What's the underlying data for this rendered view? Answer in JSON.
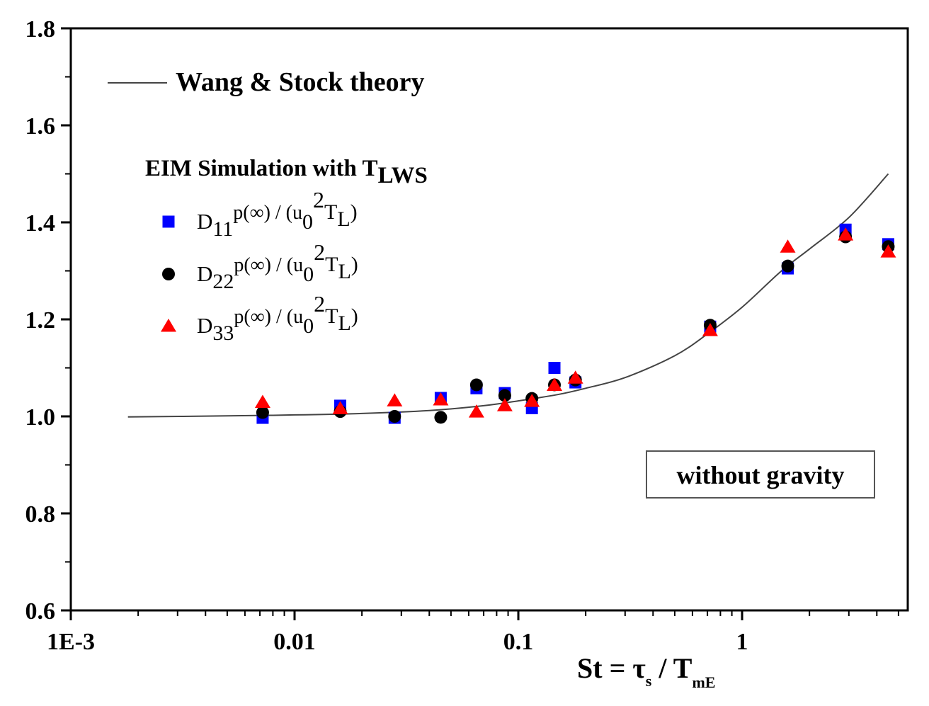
{
  "chart_data": {
    "type": "scatter",
    "x_scale": "log",
    "xlim": [
      0.001,
      5.5
    ],
    "ylim": [
      0.6,
      1.8
    ],
    "xlabel_parts": [
      "St = τ",
      "s",
      " / T",
      "mE"
    ],
    "ylabel": "",
    "x_tick_labels": [
      {
        "value": 0.001,
        "label": "1E-3"
      },
      {
        "value": 0.01,
        "label": "0.01"
      },
      {
        "value": 0.1,
        "label": "0.1"
      },
      {
        "value": 1,
        "label": "1"
      }
    ],
    "y_ticks": [
      0.6,
      0.8,
      1.0,
      1.2,
      1.4,
      1.6,
      1.8
    ],
    "y_tick_labels": [
      "0.6",
      "0.8",
      "1.0",
      "1.2",
      "1.4",
      "1.6",
      "1.8"
    ],
    "theory_legend": "Wang & Stock theory",
    "simulation_title_parts": [
      "EIM Simulation with T",
      "LWS"
    ],
    "annotation": "without gravity",
    "series": [
      {
        "legend_parts": [
          "D",
          "11",
          "p(∞) / (u",
          "0",
          "2",
          "T",
          "L",
          ")"
        ],
        "marker": "square",
        "color": "#0000ff",
        "points": [
          [
            0.0072,
            0.997
          ],
          [
            0.016,
            1.022
          ],
          [
            0.028,
            0.997
          ],
          [
            0.045,
            1.038
          ],
          [
            0.065,
            1.058
          ],
          [
            0.087,
            1.048
          ],
          [
            0.115,
            1.017
          ],
          [
            0.145,
            1.1
          ],
          [
            0.18,
            1.07
          ],
          [
            0.72,
            1.185
          ],
          [
            1.6,
            1.305
          ],
          [
            2.9,
            1.385
          ],
          [
            4.5,
            1.355
          ]
        ]
      },
      {
        "legend_parts": [
          "D",
          "22",
          "p(∞) / (u",
          "0",
          "2",
          "T",
          "L",
          ")"
        ],
        "marker": "circle",
        "color": "#000000",
        "points": [
          [
            0.0072,
            1.008
          ],
          [
            0.016,
            1.01
          ],
          [
            0.028,
            1.0
          ],
          [
            0.045,
            0.998
          ],
          [
            0.065,
            1.065
          ],
          [
            0.087,
            1.043
          ],
          [
            0.115,
            1.037
          ],
          [
            0.145,
            1.065
          ],
          [
            0.18,
            1.075
          ],
          [
            0.72,
            1.188
          ],
          [
            1.6,
            1.31
          ],
          [
            2.9,
            1.37
          ],
          [
            4.5,
            1.35
          ]
        ]
      },
      {
        "legend_parts": [
          "D",
          "33",
          "p(∞) / (u",
          "0",
          "2",
          "T",
          "L",
          ")"
        ],
        "marker": "triangle",
        "color": "#ff0000",
        "points": [
          [
            0.0072,
            1.03
          ],
          [
            0.016,
            1.017
          ],
          [
            0.028,
            1.033
          ],
          [
            0.045,
            1.035
          ],
          [
            0.065,
            1.01
          ],
          [
            0.087,
            1.023
          ],
          [
            0.115,
            1.032
          ],
          [
            0.145,
            1.065
          ],
          [
            0.18,
            1.08
          ],
          [
            0.72,
            1.178
          ],
          [
            1.6,
            1.35
          ],
          [
            2.9,
            1.375
          ],
          [
            4.5,
            1.34
          ]
        ]
      }
    ],
    "theory_curve": {
      "x": [
        0.0018,
        0.005,
        0.01,
        0.02,
        0.04,
        0.07,
        0.1,
        0.15,
        0.2,
        0.3,
        0.5,
        0.7,
        1.0,
        1.5,
        2.0,
        3.0,
        4.5
      ],
      "y": [
        0.999,
        1.001,
        1.003,
        1.006,
        1.012,
        1.022,
        1.032,
        1.045,
        1.058,
        1.08,
        1.125,
        1.17,
        1.225,
        1.3,
        1.345,
        1.41,
        1.5
      ]
    }
  }
}
